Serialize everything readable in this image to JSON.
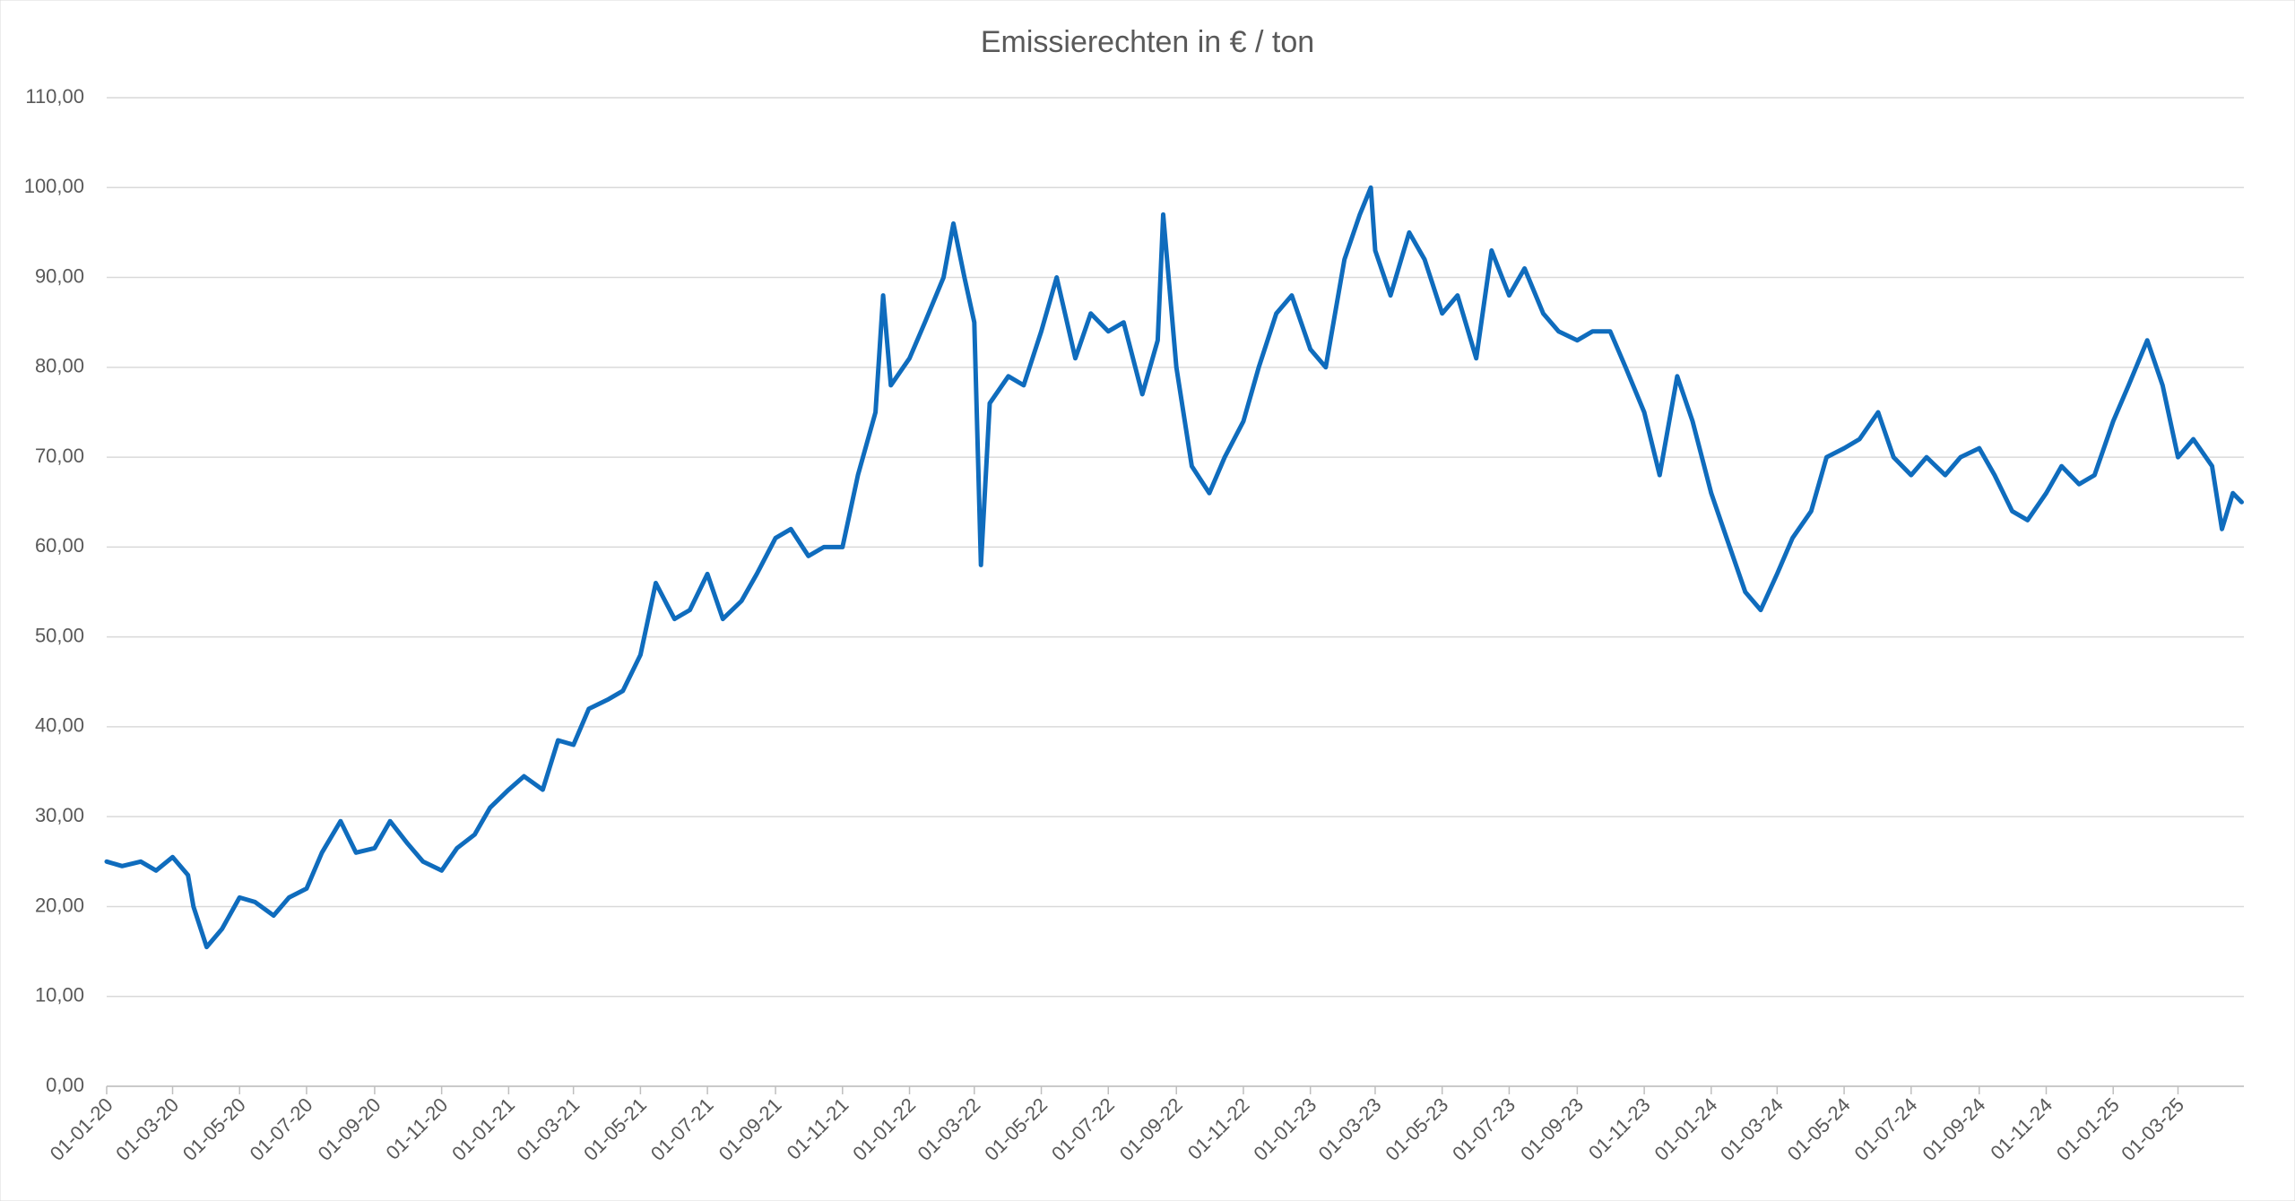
{
  "chart_data": {
    "type": "line",
    "title": "Emissierechten in € / ton",
    "color": "#0f6cbd",
    "x": [
      "2020-01-01",
      "2020-01-15",
      "2020-02-01",
      "2020-02-15",
      "2020-03-01",
      "2020-03-15",
      "2020-03-20",
      "2020-04-01",
      "2020-04-15",
      "2020-05-01",
      "2020-05-15",
      "2020-06-01",
      "2020-06-15",
      "2020-07-01",
      "2020-07-15",
      "2020-08-01",
      "2020-08-15",
      "2020-09-01",
      "2020-09-15",
      "2020-10-01",
      "2020-10-15",
      "2020-11-01",
      "2020-11-15",
      "2020-12-01",
      "2020-12-15",
      "2021-01-01",
      "2021-01-15",
      "2021-02-01",
      "2021-02-15",
      "2021-03-01",
      "2021-03-15",
      "2021-04-01",
      "2021-04-15",
      "2021-05-01",
      "2021-05-15",
      "2021-06-01",
      "2021-06-15",
      "2021-07-01",
      "2021-07-15",
      "2021-08-01",
      "2021-08-15",
      "2021-09-01",
      "2021-09-15",
      "2021-10-01",
      "2021-10-15",
      "2021-11-01",
      "2021-11-15",
      "2021-12-01",
      "2021-12-08",
      "2021-12-15",
      "2022-01-01",
      "2022-01-15",
      "2022-02-01",
      "2022-02-10",
      "2022-02-20",
      "2022-03-01",
      "2022-03-07",
      "2022-03-15",
      "2022-04-01",
      "2022-04-15",
      "2022-05-01",
      "2022-05-15",
      "2022-06-01",
      "2022-06-15",
      "2022-07-01",
      "2022-07-15",
      "2022-08-01",
      "2022-08-15",
      "2022-08-20",
      "2022-09-01",
      "2022-09-15",
      "2022-10-01",
      "2022-10-15",
      "2022-11-01",
      "2022-11-15",
      "2022-12-01",
      "2022-12-15",
      "2023-01-01",
      "2023-01-15",
      "2023-02-01",
      "2023-02-15",
      "2023-02-25",
      "2023-03-01",
      "2023-03-15",
      "2023-04-01",
      "2023-04-15",
      "2023-05-01",
      "2023-05-15",
      "2023-06-01",
      "2023-06-15",
      "2023-07-01",
      "2023-07-15",
      "2023-08-01",
      "2023-08-15",
      "2023-09-01",
      "2023-09-15",
      "2023-10-01",
      "2023-10-15",
      "2023-11-01",
      "2023-11-15",
      "2023-12-01",
      "2023-12-15",
      "2024-01-01",
      "2024-01-15",
      "2024-02-01",
      "2024-02-15",
      "2024-03-01",
      "2024-03-15",
      "2024-04-01",
      "2024-04-15",
      "2024-05-01",
      "2024-05-15",
      "2024-06-01",
      "2024-06-15",
      "2024-07-01",
      "2024-07-15",
      "2024-08-01",
      "2024-08-15",
      "2024-09-01",
      "2024-09-15",
      "2024-10-01",
      "2024-10-15",
      "2024-11-01",
      "2024-11-15",
      "2024-12-01",
      "2024-12-15",
      "2025-01-01",
      "2025-01-15",
      "2025-02-01",
      "2025-02-15",
      "2025-03-01",
      "2025-03-15",
      "2025-04-01",
      "2025-04-10",
      "2025-04-20",
      "2025-04-28"
    ],
    "values": [
      25,
      24.5,
      25,
      24,
      25.5,
      23.5,
      20,
      15.5,
      17.5,
      21,
      20.5,
      19,
      21,
      22,
      26,
      29.5,
      26,
      26.5,
      29.5,
      27,
      25,
      24,
      26.5,
      28,
      31,
      33,
      34.5,
      33,
      38.5,
      38,
      42,
      43,
      44,
      48,
      56,
      52,
      53,
      57,
      52,
      54,
      57,
      61,
      62,
      59,
      60,
      60,
      68,
      75,
      88,
      78,
      81,
      85,
      90,
      96,
      90,
      85,
      58,
      76,
      79,
      78,
      84,
      90,
      81,
      86,
      84,
      85,
      77,
      83,
      97,
      80,
      69,
      66,
      70,
      74,
      80,
      86,
      88,
      82,
      80,
      92,
      97,
      100,
      93,
      88,
      95,
      92,
      86,
      88,
      81,
      93,
      88,
      91,
      86,
      84,
      83,
      84,
      84,
      80,
      75,
      68,
      79,
      74,
      66,
      61,
      55,
      53,
      57,
      61,
      64,
      70,
      71,
      72,
      75,
      70,
      68,
      70,
      68,
      70,
      71,
      68,
      64,
      63,
      66,
      69,
      67,
      68,
      74,
      78,
      83,
      78,
      70,
      72,
      69,
      62,
      66,
      65
    ],
    "xlim": [
      "2020-01-01",
      "2025-04-30"
    ],
    "xticks": [
      {
        "value": "2020-01-01",
        "label": "01-01-20"
      },
      {
        "value": "2020-03-01",
        "label": "01-03-20"
      },
      {
        "value": "2020-05-01",
        "label": "01-05-20"
      },
      {
        "value": "2020-07-01",
        "label": "01-07-20"
      },
      {
        "value": "2020-09-01",
        "label": "01-09-20"
      },
      {
        "value": "2020-11-01",
        "label": "01-11-20"
      },
      {
        "value": "2021-01-01",
        "label": "01-01-21"
      },
      {
        "value": "2021-03-01",
        "label": "01-03-21"
      },
      {
        "value": "2021-05-01",
        "label": "01-05-21"
      },
      {
        "value": "2021-07-01",
        "label": "01-07-21"
      },
      {
        "value": "2021-09-01",
        "label": "01-09-21"
      },
      {
        "value": "2021-11-01",
        "label": "01-11-21"
      },
      {
        "value": "2022-01-01",
        "label": "01-01-22"
      },
      {
        "value": "2022-03-01",
        "label": "01-03-22"
      },
      {
        "value": "2022-05-01",
        "label": "01-05-22"
      },
      {
        "value": "2022-07-01",
        "label": "01-07-22"
      },
      {
        "value": "2022-09-01",
        "label": "01-09-22"
      },
      {
        "value": "2022-11-01",
        "label": "01-11-22"
      },
      {
        "value": "2023-01-01",
        "label": "01-01-23"
      },
      {
        "value": "2023-03-01",
        "label": "01-03-23"
      },
      {
        "value": "2023-05-01",
        "label": "01-05-23"
      },
      {
        "value": "2023-07-01",
        "label": "01-07-23"
      },
      {
        "value": "2023-09-01",
        "label": "01-09-23"
      },
      {
        "value": "2023-11-01",
        "label": "01-11-23"
      },
      {
        "value": "2024-01-01",
        "label": "01-01-24"
      },
      {
        "value": "2024-03-01",
        "label": "01-03-24"
      },
      {
        "value": "2024-05-01",
        "label": "01-05-24"
      },
      {
        "value": "2024-07-01",
        "label": "01-07-24"
      },
      {
        "value": "2024-09-01",
        "label": "01-09-24"
      },
      {
        "value": "2024-11-01",
        "label": "01-11-24"
      },
      {
        "value": "2025-01-01",
        "label": "01-01-25"
      },
      {
        "value": "2025-03-01",
        "label": "01-03-25"
      }
    ],
    "ylim": [
      0,
      110
    ],
    "yticks": [
      {
        "value": 0,
        "label": "0,00"
      },
      {
        "value": 10,
        "label": "10,00"
      },
      {
        "value": 20,
        "label": "20,00"
      },
      {
        "value": 30,
        "label": "30,00"
      },
      {
        "value": 40,
        "label": "40,00"
      },
      {
        "value": 50,
        "label": "50,00"
      },
      {
        "value": 60,
        "label": "60,00"
      },
      {
        "value": 70,
        "label": "70,00"
      },
      {
        "value": 80,
        "label": "80,00"
      },
      {
        "value": 90,
        "label": "90,00"
      },
      {
        "value": 100,
        "label": "100,00"
      },
      {
        "value": 110,
        "label": "110,00"
      }
    ],
    "grid": true
  }
}
